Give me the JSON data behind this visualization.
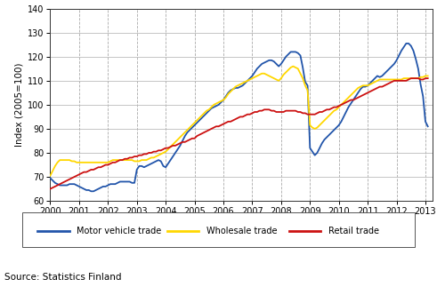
{
  "ylabel": "Index (2005=100)",
  "source": "Source: Statistics Finland",
  "xlim": [
    2000,
    2013.25
  ],
  "ylim": [
    60,
    140
  ],
  "yticks": [
    60,
    70,
    80,
    90,
    100,
    110,
    120,
    130,
    140
  ],
  "xticks": [
    2000,
    2001,
    2002,
    2003,
    2004,
    2005,
    2006,
    2007,
    2008,
    2009,
    2010,
    2011,
    2012,
    2013
  ],
  "legend_labels": [
    "Motor vehicle trade",
    "Wholesale trade",
    "Retail trade"
  ],
  "motor_vehicle": {
    "color": "#2255AA",
    "x": [
      2000.0,
      2000.083,
      2000.167,
      2000.25,
      2000.333,
      2000.417,
      2000.5,
      2000.583,
      2000.667,
      2000.75,
      2000.833,
      2000.917,
      2001.0,
      2001.083,
      2001.167,
      2001.25,
      2001.333,
      2001.417,
      2001.5,
      2001.583,
      2001.667,
      2001.75,
      2001.833,
      2001.917,
      2002.0,
      2002.083,
      2002.167,
      2002.25,
      2002.333,
      2002.417,
      2002.5,
      2002.583,
      2002.667,
      2002.75,
      2002.833,
      2002.917,
      2003.0,
      2003.083,
      2003.167,
      2003.25,
      2003.333,
      2003.417,
      2003.5,
      2003.583,
      2003.667,
      2003.75,
      2003.833,
      2003.917,
      2004.0,
      2004.083,
      2004.167,
      2004.25,
      2004.333,
      2004.417,
      2004.5,
      2004.583,
      2004.667,
      2004.75,
      2004.833,
      2004.917,
      2005.0,
      2005.083,
      2005.167,
      2005.25,
      2005.333,
      2005.417,
      2005.5,
      2005.583,
      2005.667,
      2005.75,
      2005.833,
      2005.917,
      2006.0,
      2006.083,
      2006.167,
      2006.25,
      2006.333,
      2006.417,
      2006.5,
      2006.583,
      2006.667,
      2006.75,
      2006.833,
      2006.917,
      2007.0,
      2007.083,
      2007.167,
      2007.25,
      2007.333,
      2007.417,
      2007.5,
      2007.583,
      2007.667,
      2007.75,
      2007.833,
      2007.917,
      2008.0,
      2008.083,
      2008.167,
      2008.25,
      2008.333,
      2008.417,
      2008.5,
      2008.583,
      2008.667,
      2008.75,
      2008.833,
      2008.917,
      2009.0,
      2009.083,
      2009.167,
      2009.25,
      2009.333,
      2009.417,
      2009.5,
      2009.583,
      2009.667,
      2009.75,
      2009.833,
      2009.917,
      2010.0,
      2010.083,
      2010.167,
      2010.25,
      2010.333,
      2010.417,
      2010.5,
      2010.583,
      2010.667,
      2010.75,
      2010.833,
      2010.917,
      2011.0,
      2011.083,
      2011.167,
      2011.25,
      2011.333,
      2011.417,
      2011.5,
      2011.583,
      2011.667,
      2011.75,
      2011.833,
      2011.917,
      2012.0,
      2012.083,
      2012.167,
      2012.25,
      2012.333,
      2012.417,
      2012.5,
      2012.583,
      2012.667,
      2012.75,
      2012.833,
      2012.917,
      2013.0,
      2013.083
    ],
    "y": [
      69.5,
      68.5,
      67.5,
      67.0,
      66.5,
      66.5,
      66.5,
      66.5,
      67.0,
      67.0,
      67.0,
      66.5,
      66.0,
      65.5,
      65.0,
      64.5,
      64.5,
      64.0,
      64.0,
      64.5,
      65.0,
      65.5,
      66.0,
      66.0,
      66.5,
      67.0,
      67.0,
      67.0,
      67.5,
      68.0,
      68.0,
      68.0,
      68.0,
      68.0,
      67.5,
      67.5,
      73.0,
      74.5,
      74.5,
      74.0,
      74.5,
      75.0,
      75.5,
      76.0,
      76.5,
      77.0,
      76.5,
      74.5,
      74.0,
      75.5,
      77.0,
      78.5,
      80.0,
      81.5,
      83.0,
      85.0,
      87.0,
      88.5,
      89.5,
      90.5,
      91.5,
      92.5,
      93.5,
      94.5,
      95.5,
      96.5,
      97.5,
      98.5,
      99.0,
      99.5,
      100.0,
      101.0,
      102.0,
      103.5,
      105.0,
      106.0,
      106.5,
      107.0,
      107.0,
      107.5,
      108.0,
      109.0,
      110.0,
      111.0,
      112.0,
      113.5,
      115.0,
      116.0,
      117.0,
      117.5,
      118.0,
      118.5,
      118.5,
      118.0,
      117.0,
      116.0,
      117.0,
      118.5,
      120.0,
      121.0,
      122.0,
      122.0,
      122.0,
      121.5,
      120.5,
      115.5,
      109.5,
      108.0,
      82.0,
      80.5,
      79.0,
      80.0,
      82.0,
      84.0,
      85.5,
      86.5,
      87.5,
      88.5,
      89.5,
      90.5,
      91.5,
      93.0,
      95.0,
      97.0,
      99.0,
      100.5,
      102.0,
      103.5,
      105.0,
      106.5,
      107.5,
      107.5,
      108.0,
      109.0,
      110.0,
      111.0,
      112.0,
      111.5,
      112.0,
      113.0,
      114.0,
      115.0,
      116.0,
      117.0,
      118.5,
      120.5,
      122.5,
      124.0,
      125.5,
      125.5,
      124.5,
      122.5,
      119.0,
      115.0,
      108.5,
      103.5,
      93.0,
      91.0
    ]
  },
  "wholesale": {
    "color": "#FFD700",
    "x": [
      2000.0,
      2000.083,
      2000.167,
      2000.25,
      2000.333,
      2000.417,
      2000.5,
      2000.583,
      2000.667,
      2000.75,
      2000.833,
      2000.917,
      2001.0,
      2001.083,
      2001.167,
      2001.25,
      2001.333,
      2001.417,
      2001.5,
      2001.583,
      2001.667,
      2001.75,
      2001.833,
      2001.917,
      2002.0,
      2002.083,
      2002.167,
      2002.25,
      2002.333,
      2002.417,
      2002.5,
      2002.583,
      2002.667,
      2002.75,
      2002.833,
      2002.917,
      2003.0,
      2003.083,
      2003.167,
      2003.25,
      2003.333,
      2003.417,
      2003.5,
      2003.583,
      2003.667,
      2003.75,
      2003.833,
      2003.917,
      2004.0,
      2004.083,
      2004.167,
      2004.25,
      2004.333,
      2004.417,
      2004.5,
      2004.583,
      2004.667,
      2004.75,
      2004.833,
      2004.917,
      2005.0,
      2005.083,
      2005.167,
      2005.25,
      2005.333,
      2005.417,
      2005.5,
      2005.583,
      2005.667,
      2005.75,
      2005.833,
      2005.917,
      2006.0,
      2006.083,
      2006.167,
      2006.25,
      2006.333,
      2006.417,
      2006.5,
      2006.583,
      2006.667,
      2006.75,
      2006.833,
      2006.917,
      2007.0,
      2007.083,
      2007.167,
      2007.25,
      2007.333,
      2007.417,
      2007.5,
      2007.583,
      2007.667,
      2007.75,
      2007.833,
      2007.917,
      2008.0,
      2008.083,
      2008.167,
      2008.25,
      2008.333,
      2008.417,
      2008.5,
      2008.583,
      2008.667,
      2008.75,
      2008.833,
      2008.917,
      2009.0,
      2009.083,
      2009.167,
      2009.25,
      2009.333,
      2009.417,
      2009.5,
      2009.583,
      2009.667,
      2009.75,
      2009.833,
      2009.917,
      2010.0,
      2010.083,
      2010.167,
      2010.25,
      2010.333,
      2010.417,
      2010.5,
      2010.583,
      2010.667,
      2010.75,
      2010.833,
      2010.917,
      2011.0,
      2011.083,
      2011.167,
      2011.25,
      2011.333,
      2011.417,
      2011.5,
      2011.583,
      2011.667,
      2011.75,
      2011.833,
      2011.917,
      2012.0,
      2012.083,
      2012.167,
      2012.25,
      2012.333,
      2012.417,
      2012.5,
      2012.583,
      2012.667,
      2012.75,
      2012.833,
      2012.917,
      2013.0,
      2013.083
    ],
    "y": [
      70.5,
      72.5,
      74.5,
      76.0,
      77.0,
      77.0,
      77.0,
      77.0,
      77.0,
      76.5,
      76.5,
      76.0,
      76.0,
      76.0,
      76.0,
      76.0,
      76.0,
      76.0,
      76.0,
      76.0,
      76.0,
      76.0,
      76.0,
      76.0,
      76.0,
      76.5,
      77.0,
      77.0,
      77.0,
      77.0,
      77.0,
      77.0,
      77.0,
      77.0,
      77.0,
      76.5,
      76.5,
      76.5,
      77.0,
      77.0,
      77.0,
      77.5,
      78.0,
      78.0,
      78.5,
      79.0,
      79.5,
      80.0,
      80.5,
      81.5,
      82.5,
      83.5,
      84.5,
      85.5,
      86.5,
      87.5,
      88.5,
      89.5,
      90.5,
      91.5,
      92.5,
      93.5,
      94.5,
      95.5,
      96.5,
      97.5,
      98.0,
      99.0,
      100.0,
      100.5,
      101.0,
      101.5,
      102.0,
      103.0,
      104.5,
      105.5,
      106.5,
      107.5,
      108.0,
      108.5,
      109.0,
      109.5,
      110.0,
      110.5,
      111.0,
      111.5,
      112.0,
      112.5,
      113.0,
      113.0,
      112.5,
      112.0,
      111.5,
      111.0,
      110.5,
      110.0,
      111.0,
      112.5,
      113.5,
      114.5,
      115.5,
      116.0,
      115.5,
      115.0,
      113.0,
      111.0,
      108.0,
      106.0,
      91.5,
      90.5,
      90.0,
      90.5,
      91.5,
      92.5,
      93.5,
      94.5,
      95.5,
      96.5,
      97.5,
      98.0,
      99.0,
      100.0,
      101.0,
      102.0,
      103.0,
      104.0,
      105.0,
      106.0,
      107.0,
      107.5,
      108.0,
      108.0,
      108.0,
      108.5,
      109.0,
      109.5,
      110.0,
      110.5,
      110.5,
      110.5,
      110.5,
      110.5,
      110.5,
      110.5,
      110.5,
      110.5,
      110.5,
      111.0,
      111.0,
      111.0,
      111.0,
      111.0,
      111.0,
      111.0,
      111.5,
      111.5,
      112.0,
      112.0
    ]
  },
  "retail": {
    "color": "#CC1111",
    "x": [
      2000.0,
      2000.083,
      2000.167,
      2000.25,
      2000.333,
      2000.417,
      2000.5,
      2000.583,
      2000.667,
      2000.75,
      2000.833,
      2000.917,
      2001.0,
      2001.083,
      2001.167,
      2001.25,
      2001.333,
      2001.417,
      2001.5,
      2001.583,
      2001.667,
      2001.75,
      2001.833,
      2001.917,
      2002.0,
      2002.083,
      2002.167,
      2002.25,
      2002.333,
      2002.417,
      2002.5,
      2002.583,
      2002.667,
      2002.75,
      2002.833,
      2002.917,
      2003.0,
      2003.083,
      2003.167,
      2003.25,
      2003.333,
      2003.417,
      2003.5,
      2003.583,
      2003.667,
      2003.75,
      2003.833,
      2003.917,
      2004.0,
      2004.083,
      2004.167,
      2004.25,
      2004.333,
      2004.417,
      2004.5,
      2004.583,
      2004.667,
      2004.75,
      2004.833,
      2004.917,
      2005.0,
      2005.083,
      2005.167,
      2005.25,
      2005.333,
      2005.417,
      2005.5,
      2005.583,
      2005.667,
      2005.75,
      2005.833,
      2005.917,
      2006.0,
      2006.083,
      2006.167,
      2006.25,
      2006.333,
      2006.417,
      2006.5,
      2006.583,
      2006.667,
      2006.75,
      2006.833,
      2006.917,
      2007.0,
      2007.083,
      2007.167,
      2007.25,
      2007.333,
      2007.417,
      2007.5,
      2007.583,
      2007.667,
      2007.75,
      2007.833,
      2007.917,
      2008.0,
      2008.083,
      2008.167,
      2008.25,
      2008.333,
      2008.417,
      2008.5,
      2008.583,
      2008.667,
      2008.75,
      2008.833,
      2008.917,
      2009.0,
      2009.083,
      2009.167,
      2009.25,
      2009.333,
      2009.417,
      2009.5,
      2009.583,
      2009.667,
      2009.75,
      2009.833,
      2009.917,
      2010.0,
      2010.083,
      2010.167,
      2010.25,
      2010.333,
      2010.417,
      2010.5,
      2010.583,
      2010.667,
      2010.75,
      2010.833,
      2010.917,
      2011.0,
      2011.083,
      2011.167,
      2011.25,
      2011.333,
      2011.417,
      2011.5,
      2011.583,
      2011.667,
      2011.75,
      2011.833,
      2011.917,
      2012.0,
      2012.083,
      2012.167,
      2012.25,
      2012.333,
      2012.417,
      2012.5,
      2012.583,
      2012.667,
      2012.75,
      2012.833,
      2012.917,
      2013.0,
      2013.083
    ],
    "y": [
      65.0,
      65.5,
      66.0,
      66.5,
      67.0,
      67.5,
      68.0,
      68.5,
      69.0,
      69.5,
      70.0,
      70.5,
      71.0,
      71.5,
      72.0,
      72.0,
      72.5,
      73.0,
      73.0,
      73.5,
      74.0,
      74.0,
      74.5,
      75.0,
      75.0,
      75.5,
      76.0,
      76.0,
      76.5,
      77.0,
      77.0,
      77.5,
      77.5,
      78.0,
      78.0,
      78.5,
      78.5,
      79.0,
      79.0,
      79.5,
      79.5,
      80.0,
      80.0,
      80.5,
      80.5,
      81.0,
      81.0,
      81.5,
      82.0,
      82.0,
      82.5,
      83.0,
      83.0,
      83.5,
      84.0,
      84.5,
      84.5,
      85.0,
      85.5,
      86.0,
      86.0,
      87.0,
      87.5,
      88.0,
      88.5,
      89.0,
      89.5,
      90.0,
      90.5,
      91.0,
      91.0,
      91.5,
      92.0,
      92.5,
      93.0,
      93.0,
      93.5,
      94.0,
      94.5,
      95.0,
      95.0,
      95.5,
      96.0,
      96.0,
      96.5,
      97.0,
      97.0,
      97.5,
      97.5,
      98.0,
      98.0,
      98.0,
      97.5,
      97.5,
      97.0,
      97.0,
      97.0,
      97.0,
      97.5,
      97.5,
      97.5,
      97.5,
      97.5,
      97.0,
      97.0,
      96.5,
      96.5,
      96.0,
      96.0,
      96.0,
      96.0,
      96.5,
      97.0,
      97.0,
      97.5,
      98.0,
      98.0,
      98.5,
      99.0,
      99.0,
      99.5,
      100.0,
      100.5,
      101.0,
      101.5,
      102.0,
      102.0,
      102.5,
      103.0,
      103.5,
      104.0,
      104.5,
      105.0,
      105.5,
      106.0,
      106.5,
      107.0,
      107.5,
      107.5,
      108.0,
      108.5,
      109.0,
      109.5,
      110.0,
      110.0,
      110.0,
      110.0,
      110.0,
      110.0,
      110.5,
      111.0,
      111.0,
      111.0,
      111.0,
      110.5,
      110.5,
      111.0,
      111.0
    ]
  }
}
